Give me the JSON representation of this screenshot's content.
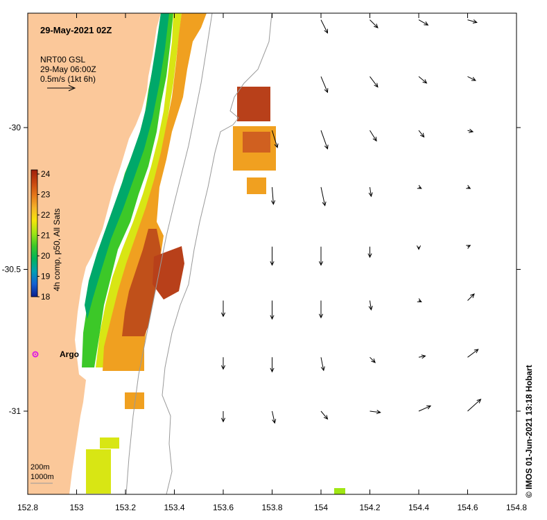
{
  "map": {
    "title": "29-May-2021 02Z",
    "vector_product": "NRT00 GSL",
    "vector_time": "29-May 06:00Z",
    "vector_scale": "0.5m/s (1kt 6h)",
    "colorbar": {
      "label": "4h comp, p50, All Sats",
      "ticks": [
        "24",
        "23",
        "22",
        "21",
        "20",
        "19",
        "18"
      ],
      "min": 18,
      "max": 24,
      "colors": [
        "#0a1e8c",
        "#1460d2",
        "#00a0b4",
        "#00b45a",
        "#3cc828",
        "#a0e614",
        "#f5e60a",
        "#f5b428",
        "#e67819",
        "#c8460f",
        "#a01e0a"
      ]
    },
    "argo_label": "Argo",
    "depth_legend": [
      "200m",
      "1000m"
    ],
    "x_ticks": [
      "152.8",
      "153",
      "153.2",
      "153.4",
      "153.6",
      "153.8",
      "154",
      "154.2",
      "154.4",
      "154.6",
      "154.8"
    ],
    "y_ticks": [
      "-30",
      "-30.5",
      "-31"
    ],
    "credit": "© IMOS 01-Jun-2021 13:18 Hobart",
    "land_color": "#fbc89a",
    "arrows": [
      {
        "lon": 153.6,
        "lat": -30.61,
        "u": 0.0,
        "v": -0.12
      },
      {
        "lon": 153.6,
        "lat": -30.81,
        "u": 0.0,
        "v": -0.09
      },
      {
        "lon": 153.6,
        "lat": -31.0,
        "u": 0.0,
        "v": -0.08
      },
      {
        "lon": 153.8,
        "lat": -30.01,
        "u": 0.04,
        "v": -0.13
      },
      {
        "lon": 153.8,
        "lat": -30.21,
        "u": 0.01,
        "v": -0.13
      },
      {
        "lon": 153.8,
        "lat": -30.42,
        "u": 0.0,
        "v": -0.14
      },
      {
        "lon": 153.8,
        "lat": -30.61,
        "u": 0.0,
        "v": -0.14
      },
      {
        "lon": 153.8,
        "lat": -30.81,
        "u": 0.0,
        "v": -0.11
      },
      {
        "lon": 153.8,
        "lat": -31.0,
        "u": 0.02,
        "v": -0.09
      },
      {
        "lon": 154.0,
        "lat": -29.62,
        "u": 0.05,
        "v": -0.1
      },
      {
        "lon": 154.0,
        "lat": -29.82,
        "u": 0.05,
        "v": -0.12
      },
      {
        "lon": 154.0,
        "lat": -30.01,
        "u": 0.05,
        "v": -0.14
      },
      {
        "lon": 154.0,
        "lat": -30.21,
        "u": 0.03,
        "v": -0.14
      },
      {
        "lon": 154.0,
        "lat": -30.42,
        "u": 0.0,
        "v": -0.14
      },
      {
        "lon": 154.0,
        "lat": -30.61,
        "u": 0.0,
        "v": -0.13
      },
      {
        "lon": 154.0,
        "lat": -30.81,
        "u": 0.02,
        "v": -0.1
      },
      {
        "lon": 154.0,
        "lat": -31.0,
        "u": 0.05,
        "v": -0.06
      },
      {
        "lon": 154.2,
        "lat": -29.62,
        "u": 0.06,
        "v": -0.06
      },
      {
        "lon": 154.2,
        "lat": -29.82,
        "u": 0.06,
        "v": -0.08
      },
      {
        "lon": 154.2,
        "lat": -30.01,
        "u": 0.05,
        "v": -0.08
      },
      {
        "lon": 154.2,
        "lat": -30.21,
        "u": 0.01,
        "v": -0.07
      },
      {
        "lon": 154.2,
        "lat": -30.42,
        "u": 0.0,
        "v": -0.08
      },
      {
        "lon": 154.2,
        "lat": -30.61,
        "u": 0.01,
        "v": -0.07
      },
      {
        "lon": 154.2,
        "lat": -30.81,
        "u": 0.04,
        "v": -0.04
      },
      {
        "lon": 154.2,
        "lat": -31.0,
        "u": 0.08,
        "v": -0.01
      },
      {
        "lon": 154.4,
        "lat": -29.62,
        "u": 0.07,
        "v": -0.04
      },
      {
        "lon": 154.4,
        "lat": -29.82,
        "u": 0.06,
        "v": -0.05
      },
      {
        "lon": 154.4,
        "lat": -30.01,
        "u": 0.04,
        "v": -0.05
      },
      {
        "lon": 154.4,
        "lat": -30.21,
        "u": 0.02,
        "v": -0.01
      },
      {
        "lon": 154.4,
        "lat": -30.42,
        "u": 0.0,
        "v": -0.02
      },
      {
        "lon": 154.4,
        "lat": -30.61,
        "u": 0.02,
        "v": -0.01
      },
      {
        "lon": 154.4,
        "lat": -30.81,
        "u": 0.05,
        "v": 0.01
      },
      {
        "lon": 154.4,
        "lat": -31.0,
        "u": 0.09,
        "v": 0.04
      },
      {
        "lon": 154.6,
        "lat": -29.62,
        "u": 0.07,
        "v": -0.02
      },
      {
        "lon": 154.6,
        "lat": -29.82,
        "u": 0.06,
        "v": -0.03
      },
      {
        "lon": 154.6,
        "lat": -30.01,
        "u": 0.04,
        "v": -0.01
      },
      {
        "lon": 154.6,
        "lat": -30.21,
        "u": 0.02,
        "v": -0.01
      },
      {
        "lon": 154.6,
        "lat": -30.42,
        "u": 0.02,
        "v": 0.01
      },
      {
        "lon": 154.6,
        "lat": -30.61,
        "u": 0.05,
        "v": 0.05
      },
      {
        "lon": 154.6,
        "lat": -30.81,
        "u": 0.08,
        "v": 0.06
      },
      {
        "lon": 154.6,
        "lat": -31.0,
        "u": 0.1,
        "v": 0.09
      }
    ]
  }
}
